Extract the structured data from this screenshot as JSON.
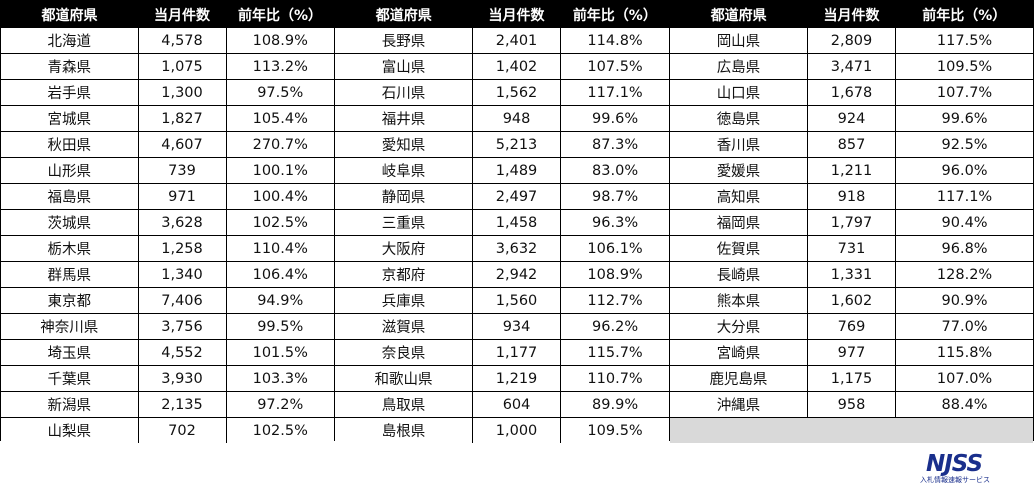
{
  "headers": {
    "pref": "都道府県",
    "count": "当月件数",
    "ratio": "前年比（%）"
  },
  "column1": [
    {
      "pref": "北海道",
      "count": "4,578",
      "ratio": "108.9%"
    },
    {
      "pref": "青森県",
      "count": "1,075",
      "ratio": "113.2%"
    },
    {
      "pref": "岩手県",
      "count": "1,300",
      "ratio": "97.5%"
    },
    {
      "pref": "宮城県",
      "count": "1,827",
      "ratio": "105.4%"
    },
    {
      "pref": "秋田県",
      "count": "4,607",
      "ratio": "270.7%"
    },
    {
      "pref": "山形県",
      "count": "739",
      "ratio": "100.1%"
    },
    {
      "pref": "福島県",
      "count": "971",
      "ratio": "100.4%"
    },
    {
      "pref": "茨城県",
      "count": "3,628",
      "ratio": "102.5%"
    },
    {
      "pref": "栃木県",
      "count": "1,258",
      "ratio": "110.4%"
    },
    {
      "pref": "群馬県",
      "count": "1,340",
      "ratio": "106.4%"
    },
    {
      "pref": "東京都",
      "count": "7,406",
      "ratio": "94.9%"
    },
    {
      "pref": "神奈川県",
      "count": "3,756",
      "ratio": "99.5%"
    },
    {
      "pref": "埼玉県",
      "count": "4,552",
      "ratio": "101.5%"
    },
    {
      "pref": "千葉県",
      "count": "3,930",
      "ratio": "103.3%"
    },
    {
      "pref": "新潟県",
      "count": "2,135",
      "ratio": "97.2%"
    },
    {
      "pref": "山梨県",
      "count": "702",
      "ratio": "102.5%"
    }
  ],
  "column2": [
    {
      "pref": "長野県",
      "count": "2,401",
      "ratio": "114.8%"
    },
    {
      "pref": "富山県",
      "count": "1,402",
      "ratio": "107.5%"
    },
    {
      "pref": "石川県",
      "count": "1,562",
      "ratio": "117.1%"
    },
    {
      "pref": "福井県",
      "count": "948",
      "ratio": "99.6%"
    },
    {
      "pref": "愛知県",
      "count": "5,213",
      "ratio": "87.3%"
    },
    {
      "pref": "岐阜県",
      "count": "1,489",
      "ratio": "83.0%"
    },
    {
      "pref": "静岡県",
      "count": "2,497",
      "ratio": "98.7%"
    },
    {
      "pref": "三重県",
      "count": "1,458",
      "ratio": "96.3%"
    },
    {
      "pref": "大阪府",
      "count": "3,632",
      "ratio": "106.1%"
    },
    {
      "pref": "京都府",
      "count": "2,942",
      "ratio": "108.9%"
    },
    {
      "pref": "兵庫県",
      "count": "1,560",
      "ratio": "112.7%"
    },
    {
      "pref": "滋賀県",
      "count": "934",
      "ratio": "96.2%"
    },
    {
      "pref": "奈良県",
      "count": "1,177",
      "ratio": "115.7%"
    },
    {
      "pref": "和歌山県",
      "count": "1,219",
      "ratio": "110.7%"
    },
    {
      "pref": "鳥取県",
      "count": "604",
      "ratio": "89.9%"
    },
    {
      "pref": "島根県",
      "count": "1,000",
      "ratio": "109.5%"
    }
  ],
  "column3": [
    {
      "pref": "岡山県",
      "count": "2,809",
      "ratio": "117.5%"
    },
    {
      "pref": "広島県",
      "count": "3,471",
      "ratio": "109.5%"
    },
    {
      "pref": "山口県",
      "count": "1,678",
      "ratio": "107.7%"
    },
    {
      "pref": "徳島県",
      "count": "924",
      "ratio": "99.6%"
    },
    {
      "pref": "香川県",
      "count": "857",
      "ratio": "92.5%"
    },
    {
      "pref": "愛媛県",
      "count": "1,211",
      "ratio": "96.0%"
    },
    {
      "pref": "高知県",
      "count": "918",
      "ratio": "117.1%"
    },
    {
      "pref": "福岡県",
      "count": "1,797",
      "ratio": "90.4%"
    },
    {
      "pref": "佐賀県",
      "count": "731",
      "ratio": "96.8%"
    },
    {
      "pref": "長崎県",
      "count": "1,331",
      "ratio": "128.2%"
    },
    {
      "pref": "熊本県",
      "count": "1,602",
      "ratio": "90.9%"
    },
    {
      "pref": "大分県",
      "count": "769",
      "ratio": "77.0%"
    },
    {
      "pref": "宮崎県",
      "count": "977",
      "ratio": "115.8%"
    },
    {
      "pref": "鹿児島県",
      "count": "1,175",
      "ratio": "107.0%"
    },
    {
      "pref": "沖縄県",
      "count": "958",
      "ratio": "88.4%"
    }
  ],
  "logo": {
    "word": "NJSS",
    "sub": "入札情報速報サービス",
    "color": "#1a2f8c"
  },
  "colors": {
    "header_bg": "#000000",
    "header_text": "#ffffff",
    "empty_cell": "#d9d9d9"
  }
}
